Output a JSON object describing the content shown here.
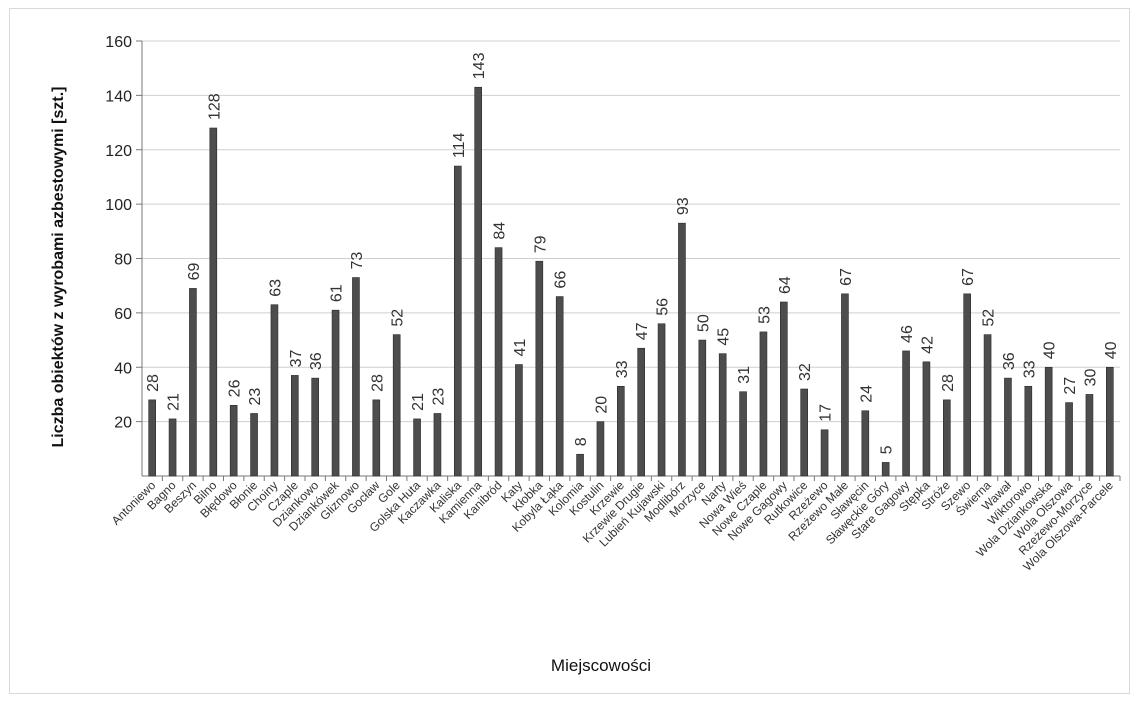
{
  "chart_data": {
    "type": "bar",
    "title": "",
    "xlabel": "Miejscowości",
    "ylabel": "Liczba obiektów z wyrobami azbestowymi [szt.]",
    "ylim": [
      0,
      160
    ],
    "yticks": [
      20,
      40,
      60,
      80,
      100,
      120,
      140,
      160
    ],
    "grid": true,
    "legend": "none",
    "bar_color": "#4d4d4d",
    "categories": [
      "Antoniewo",
      "Bagno",
      "Beszyn",
      "Bilno",
      "Błędowo",
      "Błonie",
      "Choiny",
      "Czaple",
      "Dziankowo",
      "Dziankówek",
      "Gliznowo",
      "Gocław",
      "Gole",
      "Golska Huta",
      "Kaczawka",
      "Kaliska",
      "Kamienna",
      "Kanibród",
      "Katy",
      "Kłobka",
      "Kobyla Łąka",
      "Kolomia",
      "Kostulin",
      "Krzewie",
      "Krzewie Drugie",
      "Lubień Kujawski",
      "Modlibórz",
      "Morzyce",
      "Narty",
      "Nowa Wieś",
      "Nowe Czaple",
      "Nowe Gagowy",
      "Rutkowice",
      "Rzeżewo",
      "Rzeżewo Małe",
      "Sławęcin",
      "Sławęckie Góry",
      "Stare Gagowy",
      "Stępka",
      "Stróże",
      "Szewo",
      "Świerna",
      "Wawał",
      "Wiktorowo",
      "Wola Dziankowska",
      "Wola Olszowa",
      "Rzeżewo-Morzyce",
      "Wola Olszowa-Parcele"
    ],
    "values": [
      28,
      21,
      69,
      128,
      26,
      23,
      63,
      37,
      36,
      61,
      73,
      28,
      52,
      21,
      23,
      114,
      143,
      84,
      41,
      79,
      66,
      8,
      20,
      33,
      47,
      56,
      93,
      50,
      45,
      31,
      53,
      64,
      32,
      17,
      67,
      24,
      5,
      46,
      42,
      28,
      67,
      52,
      36,
      33,
      40,
      27,
      30,
      40
    ]
  }
}
